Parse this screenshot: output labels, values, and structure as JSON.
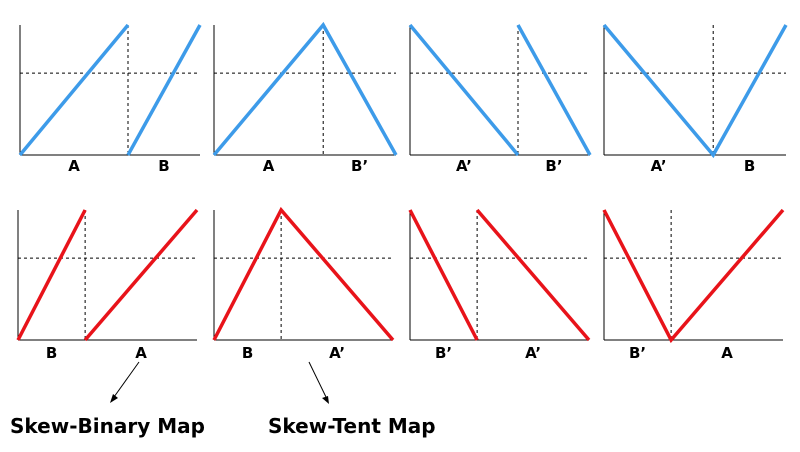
{
  "colors": {
    "top_row": "#3d9be9",
    "bottom_row": "#e8131a",
    "axis": "#000000"
  },
  "panels": [
    {
      "row": "top",
      "split": 0.6,
      "labels": [
        "A",
        "B"
      ]
    },
    {
      "row": "top",
      "split": 0.6,
      "labels": [
        "A",
        "B’"
      ]
    },
    {
      "row": "top",
      "split": 0.6,
      "labels": [
        "A’",
        "B’"
      ]
    },
    {
      "row": "top",
      "split": 0.6,
      "labels": [
        "A’",
        "B"
      ]
    },
    {
      "row": "bottom",
      "split": 0.375,
      "labels": [
        "B",
        "A"
      ]
    },
    {
      "row": "bottom",
      "split": 0.375,
      "labels": [
        "B",
        "A’"
      ]
    },
    {
      "row": "bottom",
      "split": 0.375,
      "labels": [
        "B’",
        "A’"
      ]
    },
    {
      "row": "bottom",
      "split": 0.375,
      "labels": [
        "B’",
        "A"
      ]
    }
  ],
  "captions": {
    "binary": "Skew-Binary Map",
    "tent": "Skew-Tent Map"
  }
}
